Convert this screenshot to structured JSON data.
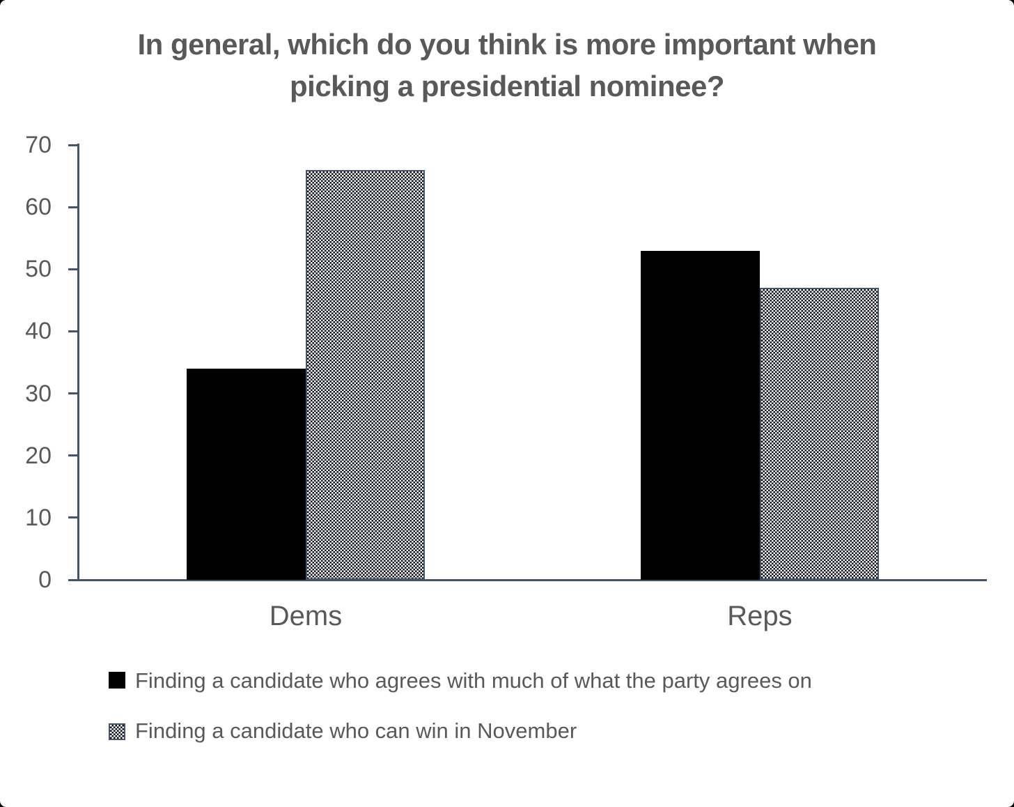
{
  "page": {
    "corner_background": "#000000",
    "card_background": "#ffffff"
  },
  "chart_data": {
    "type": "bar",
    "title": "In general, which do you think is more important when picking a presidential nominee?",
    "categories": [
      "Dems",
      "Reps"
    ],
    "series": [
      {
        "name": "Finding a candidate who agrees with much of what the party agrees on",
        "style": "solid-black",
        "color": "#000000",
        "values": [
          34,
          53
        ]
      },
      {
        "name": "Finding a candidate who can win in November",
        "style": "checkerboard",
        "color": "checkerboard black/white",
        "values": [
          66,
          47
        ]
      }
    ],
    "xlabel": "",
    "ylabel": "",
    "ylim": [
      0,
      70
    ],
    "yticks": [
      0,
      10,
      20,
      30,
      40,
      50,
      60,
      70
    ],
    "grid": false,
    "legend_position": "bottom-left",
    "axis_color": "#44546A",
    "text_color": "#595959"
  }
}
